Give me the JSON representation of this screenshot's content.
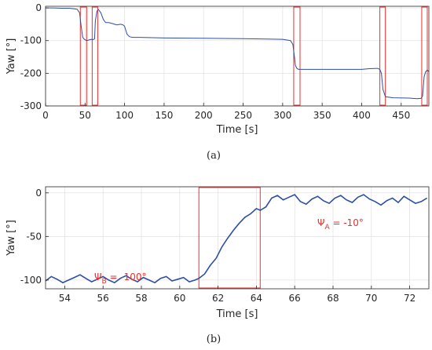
{
  "chart_data": [
    {
      "type": "line",
      "caption": "(a)",
      "xlabel": "Time [s]",
      "ylabel": "Yaw [°]",
      "xlim": [
        0,
        485
      ],
      "ylim": [
        -300,
        5
      ],
      "xticks": [
        0,
        50,
        100,
        150,
        200,
        250,
        300,
        350,
        400,
        450
      ],
      "yticks": [
        0,
        -100,
        -200,
        -300
      ],
      "grid": true,
      "line_color": "#2e4fa3",
      "highlight_color": "#e8312e",
      "series": [
        {
          "x": [
            0,
            10,
            20,
            30,
            40,
            43,
            45,
            47,
            49,
            52,
            55,
            58,
            60,
            62,
            63,
            65,
            67,
            70,
            73,
            76,
            80,
            85,
            90,
            95,
            98,
            100,
            103,
            106,
            110,
            120,
            150,
            200,
            250,
            300,
            310,
            313,
            315,
            316,
            318,
            320,
            330,
            350,
            380,
            400,
            410,
            420,
            423,
            425,
            427,
            430,
            440,
            460,
            470,
            475,
            477,
            478,
            479,
            481,
            483,
            485
          ],
          "y": [
            0,
            0,
            -1,
            -1,
            -4,
            -15,
            -55,
            -90,
            -96,
            -100,
            -98,
            -96,
            -97,
            -95,
            -40,
            -10,
            -5,
            -15,
            -35,
            -45,
            -45,
            -48,
            -52,
            -50,
            -52,
            -56,
            -80,
            -88,
            -90,
            -90,
            -92,
            -93,
            -94,
            -96,
            -100,
            -112,
            -150,
            -175,
            -185,
            -188,
            -188,
            -188,
            -188,
            -188,
            -186,
            -185,
            -188,
            -200,
            -250,
            -272,
            -275,
            -276,
            -278,
            -277,
            -270,
            -240,
            -210,
            -195,
            -190,
            -195
          ]
        }
      ],
      "highlights": [
        {
          "x0": 44,
          "x1": 52
        },
        {
          "x0": 59,
          "x1": 66
        },
        {
          "x0": 314,
          "x1": 322
        },
        {
          "x0": 423,
          "x1": 430
        },
        {
          "x0": 476,
          "x1": 483
        }
      ]
    },
    {
      "type": "line",
      "caption": "(b)",
      "xlabel": "Time [s]",
      "ylabel": "Yaw [°]",
      "xlim": [
        53,
        73
      ],
      "ylim": [
        -110,
        7
      ],
      "xticks": [
        54,
        56,
        58,
        60,
        62,
        64,
        66,
        68,
        70,
        72
      ],
      "yticks": [
        0,
        -50,
        -100
      ],
      "grid": true,
      "line_color": "#2e4fa3",
      "highlight_color": "#e8312e",
      "series": [
        {
          "x": [
            53.0,
            53.3,
            53.6,
            53.9,
            54.2,
            54.5,
            54.8,
            55.1,
            55.4,
            55.7,
            56.0,
            56.3,
            56.6,
            56.9,
            57.2,
            57.5,
            57.8,
            58.1,
            58.4,
            58.7,
            59.0,
            59.3,
            59.6,
            59.9,
            60.2,
            60.5,
            60.8,
            61.0,
            61.3,
            61.6,
            61.9,
            62.2,
            62.5,
            62.8,
            63.1,
            63.4,
            63.7,
            64.0,
            64.2,
            64.5,
            64.8,
            65.1,
            65.4,
            65.7,
            66.0,
            66.3,
            66.6,
            66.9,
            67.2,
            67.5,
            67.8,
            68.1,
            68.4,
            68.7,
            69.0,
            69.3,
            69.6,
            69.9,
            70.2,
            70.5,
            70.8,
            71.1,
            71.4,
            71.7,
            72.0,
            72.3,
            72.6,
            72.9
          ],
          "y": [
            -101,
            -96,
            -99,
            -103,
            -100,
            -97,
            -94,
            -98,
            -102,
            -99,
            -96,
            -100,
            -103,
            -98,
            -95,
            -99,
            -102,
            -97,
            -100,
            -103,
            -98,
            -96,
            -101,
            -99,
            -97,
            -102,
            -100,
            -98,
            -93,
            -83,
            -75,
            -62,
            -52,
            -43,
            -35,
            -28,
            -24,
            -18,
            -20,
            -16,
            -6,
            -3,
            -8,
            -5,
            -2,
            -10,
            -13,
            -7,
            -4,
            -9,
            -12,
            -6,
            -3,
            -8,
            -11,
            -5,
            -2,
            -7,
            -10,
            -14,
            -9,
            -6,
            -11,
            -4,
            -8,
            -12,
            -10,
            -6
          ]
        }
      ],
      "highlights": [
        {
          "x0": 61.0,
          "x1": 64.2
        }
      ],
      "annotations": [
        {
          "symbol": "Ψ",
          "sub": "B",
          "text": " = -100°"
        },
        {
          "symbol": "Ψ",
          "sub": "A",
          "text": " = -10°"
        }
      ]
    }
  ]
}
